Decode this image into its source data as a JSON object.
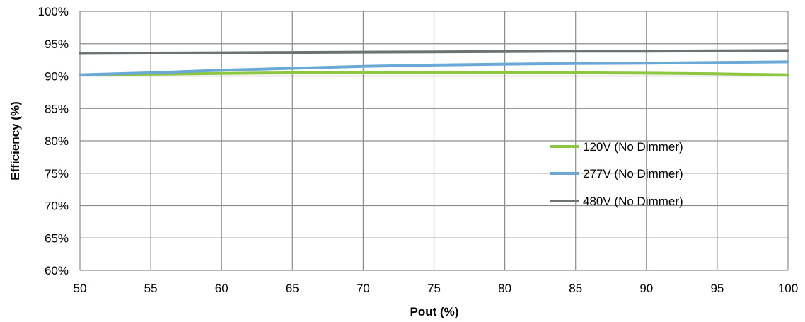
{
  "chart_data": {
    "type": "line",
    "xlabel": "Pout (%)",
    "ylabel": "Efficiency (%)",
    "xlim": [
      50,
      100
    ],
    "ylim": [
      60,
      100
    ],
    "x_ticks": [
      "50",
      "55",
      "60",
      "65",
      "70",
      "75",
      "80",
      "85",
      "90",
      "95",
      "100"
    ],
    "y_ticks": [
      "60%",
      "65%",
      "70%",
      "75%",
      "80%",
      "85%",
      "90%",
      "95%",
      "100%"
    ],
    "grid": true,
    "legend_position": "center-right",
    "x": [
      50,
      55,
      60,
      65,
      70,
      75,
      80,
      85,
      90,
      95,
      100
    ],
    "series": [
      {
        "name": "120V (No Dimmer)",
        "color": "#8dc63f",
        "values": [
          90.2,
          90.3,
          90.4,
          90.5,
          90.55,
          90.6,
          90.6,
          90.5,
          90.45,
          90.35,
          90.2
        ]
      },
      {
        "name": "277V (No Dimmer)",
        "color": "#6aa9d6",
        "values": [
          90.2,
          90.5,
          90.9,
          91.2,
          91.5,
          91.7,
          91.85,
          91.95,
          92.0,
          92.1,
          92.2
        ]
      },
      {
        "name": "480V (No Dimmer)",
        "color": "#6d7274",
        "values": [
          93.5,
          93.55,
          93.6,
          93.65,
          93.7,
          93.75,
          93.8,
          93.85,
          93.85,
          93.9,
          93.95
        ]
      }
    ]
  }
}
